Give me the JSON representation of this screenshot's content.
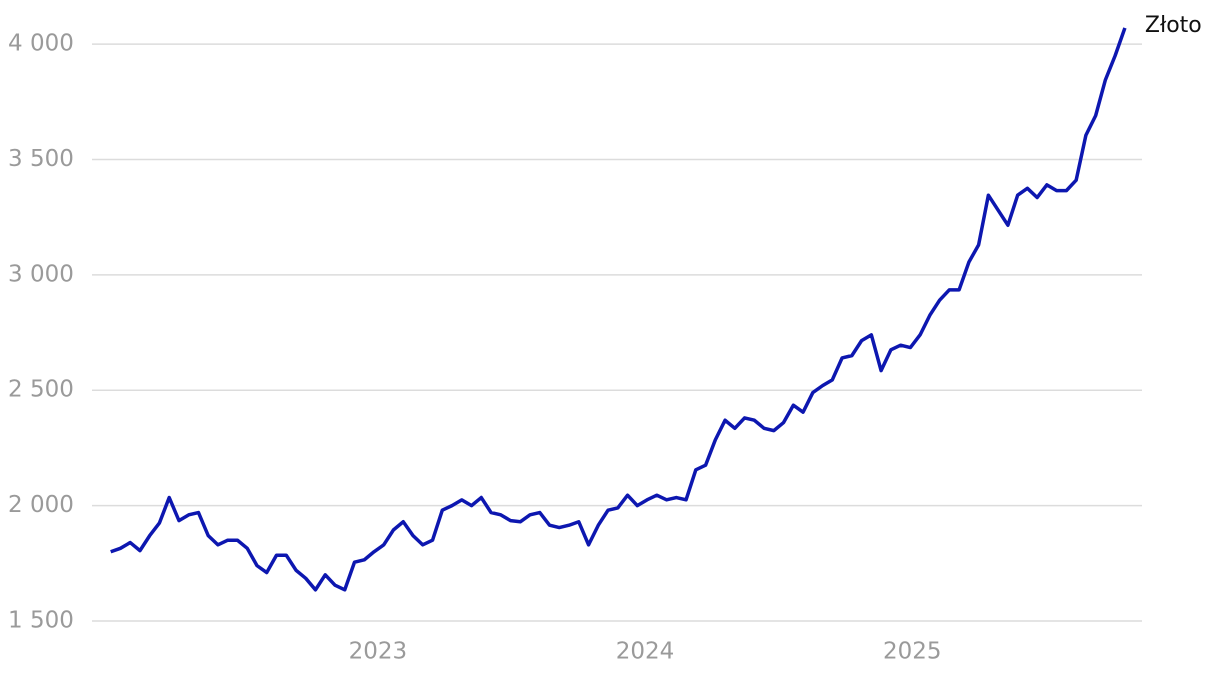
{
  "chart_data": {
    "type": "line",
    "x": [
      2022,
      2022.0365,
      2022.073,
      2022.1095,
      2022.146,
      2022.1825,
      2022.219,
      2022.2555,
      2022.292,
      2022.3285,
      2022.365,
      2022.4015,
      2022.438,
      2022.4745,
      2022.511,
      2022.5475,
      2022.584,
      2022.6205,
      2022.657,
      2022.6935,
      2022.73,
      2022.7665,
      2022.803,
      2022.8395,
      2022.876,
      2022.9125,
      2022.949,
      2022.9855,
      2023.022,
      2023.0585,
      2023.095,
      2023.1315,
      2023.168,
      2023.2045,
      2023.241,
      2023.2775,
      2023.314,
      2023.3505,
      2023.387,
      2023.4235,
      2023.46,
      2023.4965,
      2023.533,
      2023.5695,
      2023.606,
      2023.6425,
      2023.679,
      2023.7155,
      2023.752,
      2023.7885,
      2023.825,
      2023.8615,
      2023.898,
      2023.9345,
      2023.971,
      2024.0075,
      2024.044,
      2024.0805,
      2024.117,
      2024.1535,
      2024.19,
      2024.2265,
      2024.263,
      2024.2995,
      2024.336,
      2024.3725,
      2024.409,
      2024.4455,
      2024.482,
      2024.5185,
      2024.555,
      2024.5915,
      2024.628,
      2024.6645,
      2024.701,
      2024.7375,
      2024.774,
      2024.8105,
      2024.847,
      2024.8835,
      2024.92,
      2024.9565,
      2024.993,
      2025.0295,
      2025.066,
      2025.1025,
      2025.139,
      2025.1755,
      2025.212,
      2025.2485,
      2025.285,
      2025.3215,
      2025.358,
      2025.3945,
      2025.431,
      2025.4675,
      2025.504,
      2025.5405,
      2025.577,
      2025.6135,
      2025.65,
      2025.6865,
      2025.723,
      2025.7595,
      2025.796
    ],
    "series": [
      {
        "name": "Złoto",
        "color": "#0d17b0",
        "values": [
          1800,
          1815,
          1840,
          1805,
          1870,
          1925,
          2035,
          1935,
          1960,
          1970,
          1870,
          1830,
          1850,
          1850,
          1815,
          1740,
          1710,
          1785,
          1785,
          1720,
          1685,
          1635,
          1700,
          1655,
          1635,
          1755,
          1765,
          1800,
          1830,
          1895,
          1930,
          1870,
          1830,
          1850,
          1980,
          2000,
          2025,
          2000,
          2035,
          1970,
          1960,
          1935,
          1930,
          1960,
          1970,
          1915,
          1905,
          1915,
          1930,
          1830,
          1915,
          1980,
          1990,
          2045,
          2000,
          2025,
          2045,
          2025,
          2035,
          2025,
          2155,
          2175,
          2285,
          2370,
          2335,
          2380,
          2370,
          2335,
          2325,
          2360,
          2435,
          2405,
          2490,
          2520,
          2545,
          2640,
          2650,
          2715,
          2740,
          2585,
          2675,
          2695,
          2685,
          2740,
          2825,
          2890,
          2935,
          2935,
          3055,
          3130,
          3345,
          3280,
          3215,
          3345,
          3375,
          3335,
          3390,
          3365,
          3365,
          3410,
          3605,
          3690,
          3845,
          3950,
          4070
        ]
      }
    ],
    "xlim": [
      2021.93,
      2025.86
    ],
    "xticks": [
      2023,
      2024,
      2025
    ],
    "ylim": [
      1500,
      4100
    ],
    "yticks": [
      {
        "value": 1500,
        "label": "1 500"
      },
      {
        "value": 2000,
        "label": "2 000"
      },
      {
        "value": 2500,
        "label": "2 500"
      },
      {
        "value": 3000,
        "label": "3 000"
      },
      {
        "value": 3500,
        "label": "3 500"
      },
      {
        "value": 4000,
        "label": "4 000"
      }
    ],
    "grid": true
  }
}
